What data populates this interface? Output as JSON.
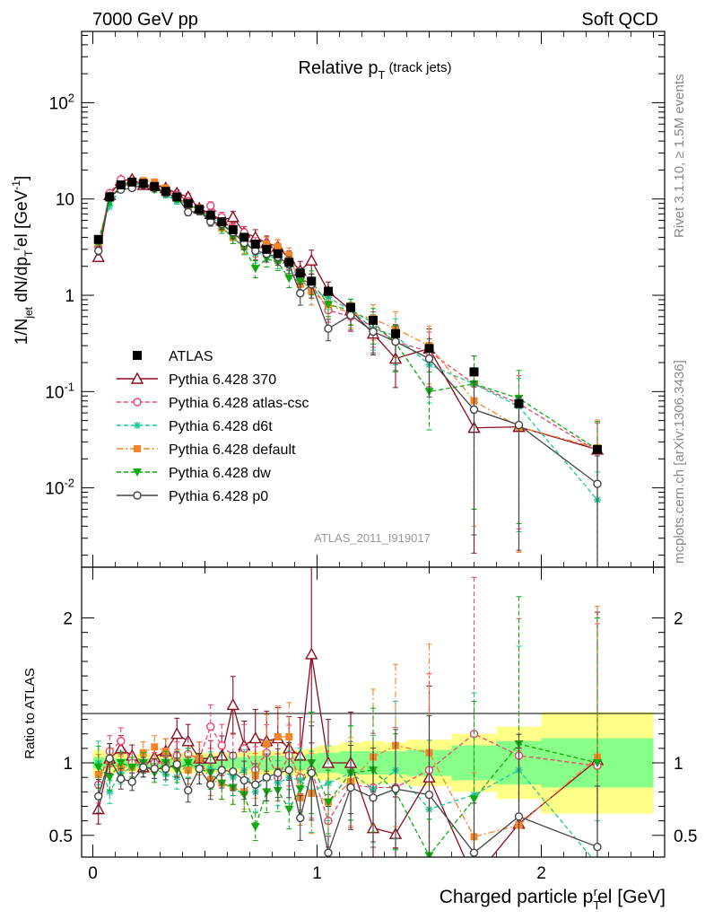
{
  "header": {
    "left": "7000 GeV pp",
    "right": "Soft QCD"
  },
  "side_text": {
    "top": "Rivet 3.1.10, ≥ 1.5M events",
    "bottom": "mcplots.cern.ch [arXiv:1306.3436]"
  },
  "watermark": "ATLAS_2011_I919017",
  "colors": {
    "ATLAS": "#000000",
    "p370": "#8b0a1e",
    "atlascsc": "#e8446f",
    "d6t": "#19c79a",
    "default": "#f58426",
    "dw": "#0eab0e",
    "p0": "#444444",
    "band_outer": "#ffff88",
    "band_inner": "#88ff88"
  },
  "chart_data": [
    {
      "type": "line",
      "title": "Relative p_T (track jets)",
      "title_main": "Relative p",
      "title_sub": "T",
      "title_suffix": "(track jets)",
      "ylabel": "1/N_jet dN/dp_T^rel [GeV^-1]",
      "yscale": "log",
      "ylim": [
        0.0015,
        550
      ],
      "xlim": [
        -0.05,
        2.55
      ],
      "ytick_labels": [
        "10^-2",
        "10^-1",
        "1",
        "10",
        "10^2"
      ],
      "x": [
        0.025,
        0.075,
        0.125,
        0.175,
        0.225,
        0.275,
        0.325,
        0.375,
        0.425,
        0.475,
        0.525,
        0.575,
        0.625,
        0.675,
        0.725,
        0.775,
        0.825,
        0.875,
        0.925,
        0.975,
        1.05,
        1.15,
        1.25,
        1.35,
        1.5,
        1.7,
        1.9,
        2.25
      ],
      "series": [
        {
          "key": "ATLAS",
          "name": "ATLAS",
          "values": [
            3.8,
            10.5,
            14,
            15,
            14.5,
            13.5,
            12,
            10.5,
            9,
            7.8,
            6.8,
            5.8,
            4.8,
            4,
            3.4,
            3,
            2.7,
            2.2,
            1.7,
            1.4,
            1.1,
            0.75,
            0.55,
            0.4,
            0.28,
            0.16,
            0.075,
            0.025
          ]
        },
        {
          "key": "p370",
          "name": "Pythia 6.428 370",
          "values": [
            2.5,
            11,
            15.5,
            16,
            14,
            14,
            13,
            11.5,
            10.5,
            8,
            7,
            6,
            6.5,
            4.5,
            4,
            3.5,
            3.2,
            2.4,
            1.8,
            2.3,
            1.1,
            0.7,
            0.4,
            0.22,
            0.28,
            0.042,
            0.043,
            0.025
          ]
        },
        {
          "key": "atlascsc",
          "name": "Pythia 6.428 atlas-csc",
          "values": [
            3.2,
            11.5,
            16,
            15,
            14.5,
            13.5,
            12,
            11,
            9.5,
            8,
            8.5,
            6.5,
            5,
            4.5,
            3.3,
            3.2,
            2.3,
            2.3,
            1.5,
            1.3,
            0.7,
            0.6,
            0.48,
            0.33,
            0.26,
            0.12,
            0.075,
            0.024
          ]
        },
        {
          "key": "d6t",
          "name": "Pythia 6.428 d6t",
          "values": [
            3.8,
            8.5,
            13,
            14.5,
            14,
            13,
            11,
            9.5,
            9,
            7.5,
            6.5,
            5.5,
            4.3,
            3.8,
            2.7,
            2.7,
            2.3,
            2,
            1.5,
            1.1,
            0.95,
            0.7,
            0.45,
            0.38,
            0.19,
            0.12,
            0.07,
            0.0075
          ]
        },
        {
          "key": "default",
          "name": "Pythia 6.428 default",
          "values": [
            3.5,
            10.5,
            13.5,
            14.5,
            15.5,
            15,
            13,
            10.5,
            8.5,
            8,
            6,
            5,
            4,
            3.2,
            3.1,
            3.4,
            3.2,
            2.6,
            1.3,
            1.1,
            0.8,
            0.65,
            0.57,
            0.45,
            0.3,
            0.08,
            0.043,
            0.026
          ]
        },
        {
          "key": "dw",
          "name": "Pythia 6.428 dw",
          "values": [
            3.7,
            9.5,
            14,
            14.5,
            14.5,
            12.5,
            12,
            10,
            9,
            7.5,
            6.3,
            5,
            4,
            3.1,
            1.9,
            2.4,
            2.2,
            1.5,
            1.4,
            1.4,
            0.8,
            0.7,
            0.52,
            0.32,
            0.1,
            0.12,
            0.085,
            0.025
          ]
        },
        {
          "key": "p0",
          "name": "Pythia 6.428 p0",
          "values": [
            2.9,
            10.8,
            12.5,
            13,
            14,
            13,
            11.5,
            10.5,
            7.3,
            7.5,
            5.8,
            5.5,
            4.5,
            3.5,
            2.9,
            2.7,
            2.5,
            2.1,
            1.05,
            1.3,
            0.45,
            0.62,
            0.42,
            0.33,
            0.22,
            0.065,
            0.045,
            0.011
          ]
        }
      ],
      "legend_placement": "lower-left"
    },
    {
      "type": "line",
      "ylabel": "Ratio to ATLAS",
      "xlabel": "Charged particle p_T^rel [GeV]",
      "ylim": [
        0.35,
        2.35
      ],
      "xlim": [
        -0.05,
        2.55
      ],
      "ytick_labels": [
        "0.5",
        "1",
        "2"
      ],
      "xtick_labels": [
        "0",
        "1",
        "2"
      ],
      "x": [
        0.025,
        0.075,
        0.125,
        0.175,
        0.225,
        0.275,
        0.325,
        0.375,
        0.425,
        0.475,
        0.525,
        0.575,
        0.625,
        0.675,
        0.725,
        0.775,
        0.825,
        0.875,
        0.925,
        0.975,
        1.05,
        1.15,
        1.25,
        1.35,
        1.5,
        1.7,
        1.9,
        2.25
      ],
      "series": [
        {
          "key": "p370",
          "values": [
            0.68,
            1.03,
            1.1,
            1.05,
            0.97,
            1.04,
            1.08,
            1.2,
            1.15,
            1.03,
            1.03,
            1.05,
            1.4,
            1.12,
            1.17,
            1.15,
            1.17,
            1.1,
            1.05,
            1.75,
            1.0,
            1.0,
            0.55,
            0.51,
            0.9,
            0.2,
            0.58,
            1.02
          ]
        },
        {
          "key": "atlascsc",
          "values": [
            0.85,
            1.08,
            1.15,
            1.0,
            1.0,
            1.0,
            1.0,
            1.05,
            1.06,
            1.03,
            1.25,
            1.12,
            1.05,
            1.1,
            0.95,
            1.07,
            0.9,
            1.05,
            0.9,
            0.95,
            0.6,
            0.85,
            0.83,
            0.83,
            0.95,
            1.2,
            1.05,
            0.98
          ]
        },
        {
          "key": "d6t",
          "values": [
            1.0,
            0.8,
            0.93,
            0.97,
            0.97,
            0.96,
            0.92,
            0.9,
            1.0,
            0.96,
            0.96,
            0.95,
            0.9,
            0.95,
            0.8,
            0.9,
            0.86,
            0.9,
            0.88,
            0.8,
            0.86,
            0.93,
            0.82,
            0.95,
            0.68,
            0.78,
            0.95,
            0.3
          ]
        },
        {
          "key": "default",
          "values": [
            0.92,
            1.0,
            0.97,
            0.97,
            1.07,
            1.11,
            1.08,
            1.0,
            0.95,
            1.03,
            0.88,
            0.86,
            0.83,
            0.8,
            0.91,
            1.13,
            1.18,
            1.18,
            0.76,
            0.79,
            0.73,
            0.87,
            1.04,
            1.12,
            1.07,
            0.49,
            0.57,
            1.04
          ]
        },
        {
          "key": "dw",
          "values": [
            0.97,
            0.9,
            1.0,
            0.97,
            1.0,
            0.93,
            1.0,
            0.95,
            1.0,
            0.96,
            0.93,
            0.86,
            0.83,
            0.78,
            0.56,
            0.8,
            0.81,
            0.68,
            0.82,
            1.0,
            0.73,
            0.93,
            0.95,
            0.8,
            0.36,
            0.75,
            1.13,
            1.0
          ]
        },
        {
          "key": "p0",
          "values": [
            0.77,
            1.03,
            0.89,
            0.87,
            0.97,
            0.96,
            0.96,
            0.99,
            0.81,
            0.96,
            0.85,
            0.95,
            0.94,
            0.88,
            0.85,
            0.9,
            0.93,
            0.95,
            0.62,
            0.93,
            0.38,
            0.83,
            0.76,
            0.82,
            0.78,
            0.38,
            0.63,
            0.42
          ]
        }
      ],
      "band": {
        "edges": [
          0.0,
          0.05,
          0.1,
          0.15,
          0.2,
          0.25,
          0.3,
          0.35,
          0.4,
          0.45,
          0.5,
          0.55,
          0.6,
          0.65,
          0.7,
          0.75,
          0.8,
          0.85,
          0.9,
          0.95,
          1.0,
          1.1,
          1.2,
          1.3,
          1.4,
          1.6,
          1.8,
          2.0,
          2.5
        ],
        "outer": [
          0.09,
          0.07,
          0.07,
          0.06,
          0.06,
          0.06,
          0.06,
          0.07,
          0.07,
          0.07,
          0.07,
          0.07,
          0.07,
          0.08,
          0.08,
          0.08,
          0.08,
          0.09,
          0.09,
          0.1,
          0.12,
          0.14,
          0.15,
          0.14,
          0.16,
          0.2,
          0.25,
          0.35
        ],
        "inner": [
          0.04,
          0.03,
          0.03,
          0.03,
          0.03,
          0.03,
          0.03,
          0.03,
          0.04,
          0.04,
          0.04,
          0.04,
          0.04,
          0.04,
          0.05,
          0.05,
          0.05,
          0.05,
          0.05,
          0.06,
          0.07,
          0.08,
          0.08,
          0.08,
          0.09,
          0.12,
          0.15,
          0.17
        ]
      }
    }
  ]
}
